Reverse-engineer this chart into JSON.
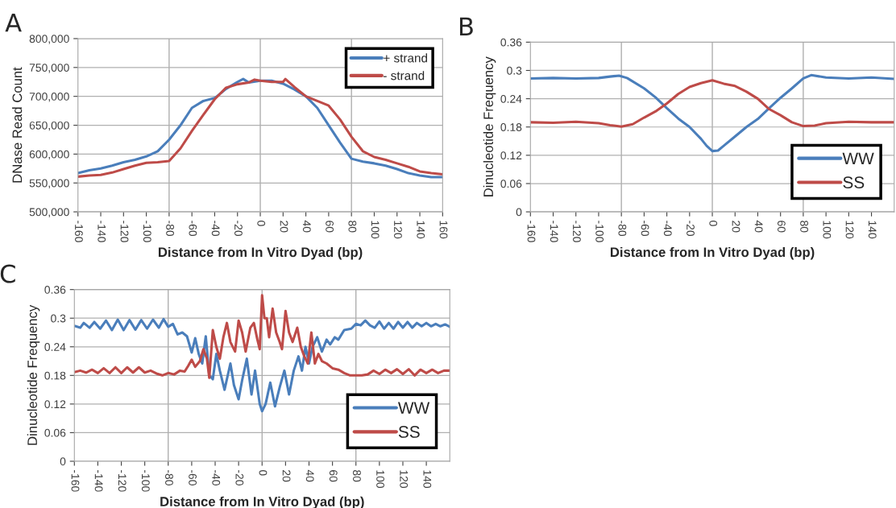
{
  "chart_data": [
    {
      "type": "line",
      "title": "A",
      "xlabel": "Distance from In Vitro Dyad (bp)",
      "ylabel": "DNase Read Count",
      "xlim": [
        -160,
        160
      ],
      "xticks": [
        -160,
        -140,
        -120,
        -100,
        -80,
        -60,
        -40,
        -20,
        0,
        20,
        40,
        60,
        80,
        100,
        120,
        140,
        160
      ],
      "ylim": [
        500000,
        800000
      ],
      "yticks": [
        {
          "value": 500000,
          "label": "500,000"
        },
        {
          "value": 550000,
          "label": "550,000"
        },
        {
          "value": 600000,
          "label": "600,000"
        },
        {
          "value": 650000,
          "label": "650,000"
        },
        {
          "value": 700000,
          "label": "700,000"
        },
        {
          "value": 750000,
          "label": "750,000"
        },
        {
          "value": 800000,
          "label": "800,000"
        }
      ],
      "grid": "y",
      "legend": "top right",
      "ref_lines": [
        {
          "axis": "x",
          "value": -80,
          "color": "#a6a6a6"
        },
        {
          "axis": "x",
          "value": 0,
          "color": "#a6a6a6"
        },
        {
          "axis": "x",
          "value": 80,
          "color": "#a6a6a6"
        }
      ],
      "series": [
        {
          "name": "+ strand",
          "color": "#4a7ebb",
          "x": [
            -160,
            -150,
            -140,
            -130,
            -120,
            -110,
            -100,
            -90,
            -80,
            -70,
            -60,
            -50,
            -40,
            -30,
            -20,
            -15,
            -10,
            0,
            10,
            20,
            30,
            40,
            50,
            60,
            70,
            80,
            90,
            100,
            110,
            120,
            130,
            140,
            150,
            160
          ],
          "values": [
            567000,
            572000,
            575000,
            580000,
            586000,
            590000,
            596000,
            605000,
            625000,
            650000,
            680000,
            692000,
            697000,
            713000,
            725000,
            730000,
            724000,
            727000,
            727000,
            722000,
            712000,
            700000,
            680000,
            650000,
            620000,
            592000,
            587000,
            584000,
            580000,
            574000,
            567000,
            563000,
            560000,
            560000
          ]
        },
        {
          "name": "- strand",
          "color": "#be4b48",
          "x": [
            -160,
            -150,
            -140,
            -130,
            -120,
            -110,
            -100,
            -90,
            -80,
            -70,
            -60,
            -50,
            -40,
            -30,
            -20,
            -10,
            -5,
            0,
            10,
            20,
            22,
            30,
            40,
            50,
            60,
            70,
            80,
            90,
            100,
            110,
            120,
            130,
            140,
            150,
            160
          ],
          "values": [
            561000,
            563000,
            564000,
            568000,
            574000,
            580000,
            585000,
            586000,
            588000,
            610000,
            640000,
            668000,
            695000,
            715000,
            721000,
            724000,
            729000,
            727000,
            725000,
            725000,
            730000,
            716000,
            700000,
            692000,
            684000,
            660000,
            630000,
            605000,
            595000,
            590000,
            584000,
            578000,
            570000,
            567000,
            565000
          ]
        }
      ]
    },
    {
      "type": "line",
      "title": "B",
      "xlabel": "Distance from In Vitro Dyad (bp)",
      "ylabel": "Dinucleotide Frequency",
      "xlim": [
        -160,
        160
      ],
      "xticks": [
        -160,
        -140,
        -120,
        -100,
        -80,
        -60,
        -40,
        -20,
        0,
        20,
        40,
        60,
        80,
        100,
        120,
        140
      ],
      "ylim": [
        0,
        0.36
      ],
      "yticks": [
        0,
        0.06,
        0.12,
        0.18,
        0.24,
        0.3,
        0.36
      ],
      "grid": "y",
      "legend": "bottom right",
      "ref_lines": [
        {
          "axis": "x",
          "value": -80,
          "color": "#a6a6a6"
        },
        {
          "axis": "x",
          "value": 0,
          "color": "#a6a6a6"
        },
        {
          "axis": "x",
          "value": 80,
          "color": "#a6a6a6"
        }
      ],
      "series": [
        {
          "name": "WW",
          "color": "#4a7ebb",
          "x": [
            -160,
            -140,
            -120,
            -100,
            -90,
            -82,
            -75,
            -60,
            -50,
            -40,
            -30,
            -20,
            -10,
            -5,
            0,
            5,
            10,
            20,
            30,
            40,
            50,
            60,
            70,
            80,
            87,
            100,
            120,
            140,
            160
          ],
          "values": [
            0.283,
            0.284,
            0.283,
            0.284,
            0.287,
            0.289,
            0.284,
            0.262,
            0.243,
            0.22,
            0.198,
            0.18,
            0.155,
            0.14,
            0.129,
            0.13,
            0.14,
            0.16,
            0.18,
            0.197,
            0.22,
            0.242,
            0.262,
            0.283,
            0.29,
            0.285,
            0.283,
            0.285,
            0.282
          ]
        },
        {
          "name": "SS",
          "color": "#be4b48",
          "x": [
            -160,
            -140,
            -120,
            -100,
            -90,
            -80,
            -70,
            -60,
            -50,
            -40,
            -30,
            -20,
            -10,
            0,
            10,
            20,
            30,
            40,
            50,
            60,
            70,
            80,
            90,
            100,
            120,
            140,
            160
          ],
          "values": [
            0.19,
            0.189,
            0.191,
            0.188,
            0.184,
            0.181,
            0.186,
            0.2,
            0.213,
            0.23,
            0.25,
            0.265,
            0.273,
            0.279,
            0.272,
            0.267,
            0.255,
            0.24,
            0.218,
            0.205,
            0.19,
            0.182,
            0.183,
            0.188,
            0.191,
            0.19,
            0.19
          ]
        }
      ]
    },
    {
      "type": "line",
      "title": "C",
      "xlabel": "Distance from In Vitro Dyad (bp)",
      "ylabel": "Dinucleotide Frequency",
      "xlim": [
        -160,
        160
      ],
      "xticks": [
        -160,
        -140,
        -120,
        -100,
        -80,
        -60,
        -40,
        -20,
        0,
        20,
        40,
        60,
        80,
        100,
        120,
        140
      ],
      "ylim": [
        0,
        0.36
      ],
      "yticks": [
        0,
        0.06,
        0.12,
        0.18,
        0.24,
        0.3,
        0.36
      ],
      "grid": "y",
      "legend": "bottom right",
      "ref_lines": [
        {
          "axis": "x",
          "value": -80,
          "color": "#a6a6a6"
        },
        {
          "axis": "x",
          "value": 0,
          "color": "#a6a6a6"
        },
        {
          "axis": "x",
          "value": 80,
          "color": "#a6a6a6"
        }
      ],
      "series": [
        {
          "name": "WW",
          "color": "#4a7ebb",
          "x": [
            -160,
            -155,
            -152,
            -147,
            -143,
            -138,
            -133,
            -128,
            -123,
            -118,
            -113,
            -108,
            -103,
            -98,
            -93,
            -88,
            -84,
            -80,
            -76,
            -72,
            -68,
            -64,
            -60,
            -57,
            -54,
            -51,
            -48,
            -45,
            -42,
            -39,
            -36,
            -32,
            -27,
            -24,
            -20,
            -17,
            -13,
            -9,
            -6,
            -2,
            0,
            3,
            7,
            11,
            15,
            19,
            23,
            27,
            31,
            34,
            37,
            40,
            43,
            47,
            51,
            55,
            58,
            62,
            65,
            70,
            76,
            80,
            84,
            88,
            92,
            96,
            100,
            104,
            108,
            112,
            116,
            120,
            124,
            128,
            132,
            136,
            140,
            144,
            148,
            152,
            156,
            160
          ],
          "values": [
            0.284,
            0.28,
            0.29,
            0.28,
            0.292,
            0.278,
            0.295,
            0.275,
            0.297,
            0.275,
            0.296,
            0.276,
            0.296,
            0.278,
            0.297,
            0.28,
            0.298,
            0.282,
            0.288,
            0.266,
            0.27,
            0.262,
            0.228,
            0.258,
            0.225,
            0.205,
            0.262,
            0.18,
            0.172,
            0.225,
            0.19,
            0.15,
            0.205,
            0.16,
            0.13,
            0.17,
            0.215,
            0.14,
            0.19,
            0.12,
            0.105,
            0.12,
            0.165,
            0.115,
            0.155,
            0.19,
            0.14,
            0.19,
            0.22,
            0.19,
            0.24,
            0.205,
            0.24,
            0.26,
            0.23,
            0.255,
            0.245,
            0.26,
            0.255,
            0.275,
            0.278,
            0.288,
            0.285,
            0.295,
            0.285,
            0.28,
            0.293,
            0.278,
            0.29,
            0.278,
            0.292,
            0.28,
            0.292,
            0.28,
            0.29,
            0.283,
            0.29,
            0.283,
            0.288,
            0.283,
            0.287,
            0.282
          ]
        },
        {
          "name": "SS",
          "color": "#be4b48",
          "x": [
            -160,
            -155,
            -150,
            -145,
            -140,
            -135,
            -130,
            -125,
            -120,
            -115,
            -110,
            -105,
            -100,
            -95,
            -90,
            -85,
            -80,
            -75,
            -70,
            -66,
            -63,
            -60,
            -57,
            -53,
            -50,
            -47,
            -45,
            -42,
            -39,
            -36,
            -33,
            -30,
            -27,
            -23,
            -20,
            -17,
            -14,
            -10,
            -7,
            -4,
            -2,
            0,
            2,
            4,
            6,
            9,
            12,
            15,
            17,
            20,
            23,
            26,
            30,
            33,
            36,
            39,
            42,
            45,
            48,
            51,
            55,
            60,
            65,
            70,
            75,
            80,
            85,
            90,
            95,
            100,
            105,
            110,
            115,
            120,
            125,
            130,
            135,
            140,
            145,
            150,
            155,
            160
          ],
          "values": [
            0.187,
            0.19,
            0.186,
            0.192,
            0.185,
            0.195,
            0.185,
            0.197,
            0.185,
            0.197,
            0.186,
            0.197,
            0.186,
            0.19,
            0.184,
            0.18,
            0.185,
            0.182,
            0.19,
            0.188,
            0.2,
            0.213,
            0.198,
            0.21,
            0.235,
            0.215,
            0.175,
            0.275,
            0.24,
            0.215,
            0.26,
            0.29,
            0.25,
            0.23,
            0.295,
            0.27,
            0.23,
            0.28,
            0.29,
            0.255,
            0.235,
            0.348,
            0.3,
            0.3,
            0.26,
            0.32,
            0.27,
            0.25,
            0.235,
            0.315,
            0.27,
            0.25,
            0.28,
            0.24,
            0.22,
            0.205,
            0.27,
            0.205,
            0.225,
            0.21,
            0.205,
            0.195,
            0.192,
            0.185,
            0.18,
            0.18,
            0.18,
            0.182,
            0.19,
            0.183,
            0.192,
            0.185,
            0.193,
            0.183,
            0.193,
            0.18,
            0.192,
            0.185,
            0.192,
            0.185,
            0.19,
            0.19
          ]
        }
      ]
    }
  ]
}
